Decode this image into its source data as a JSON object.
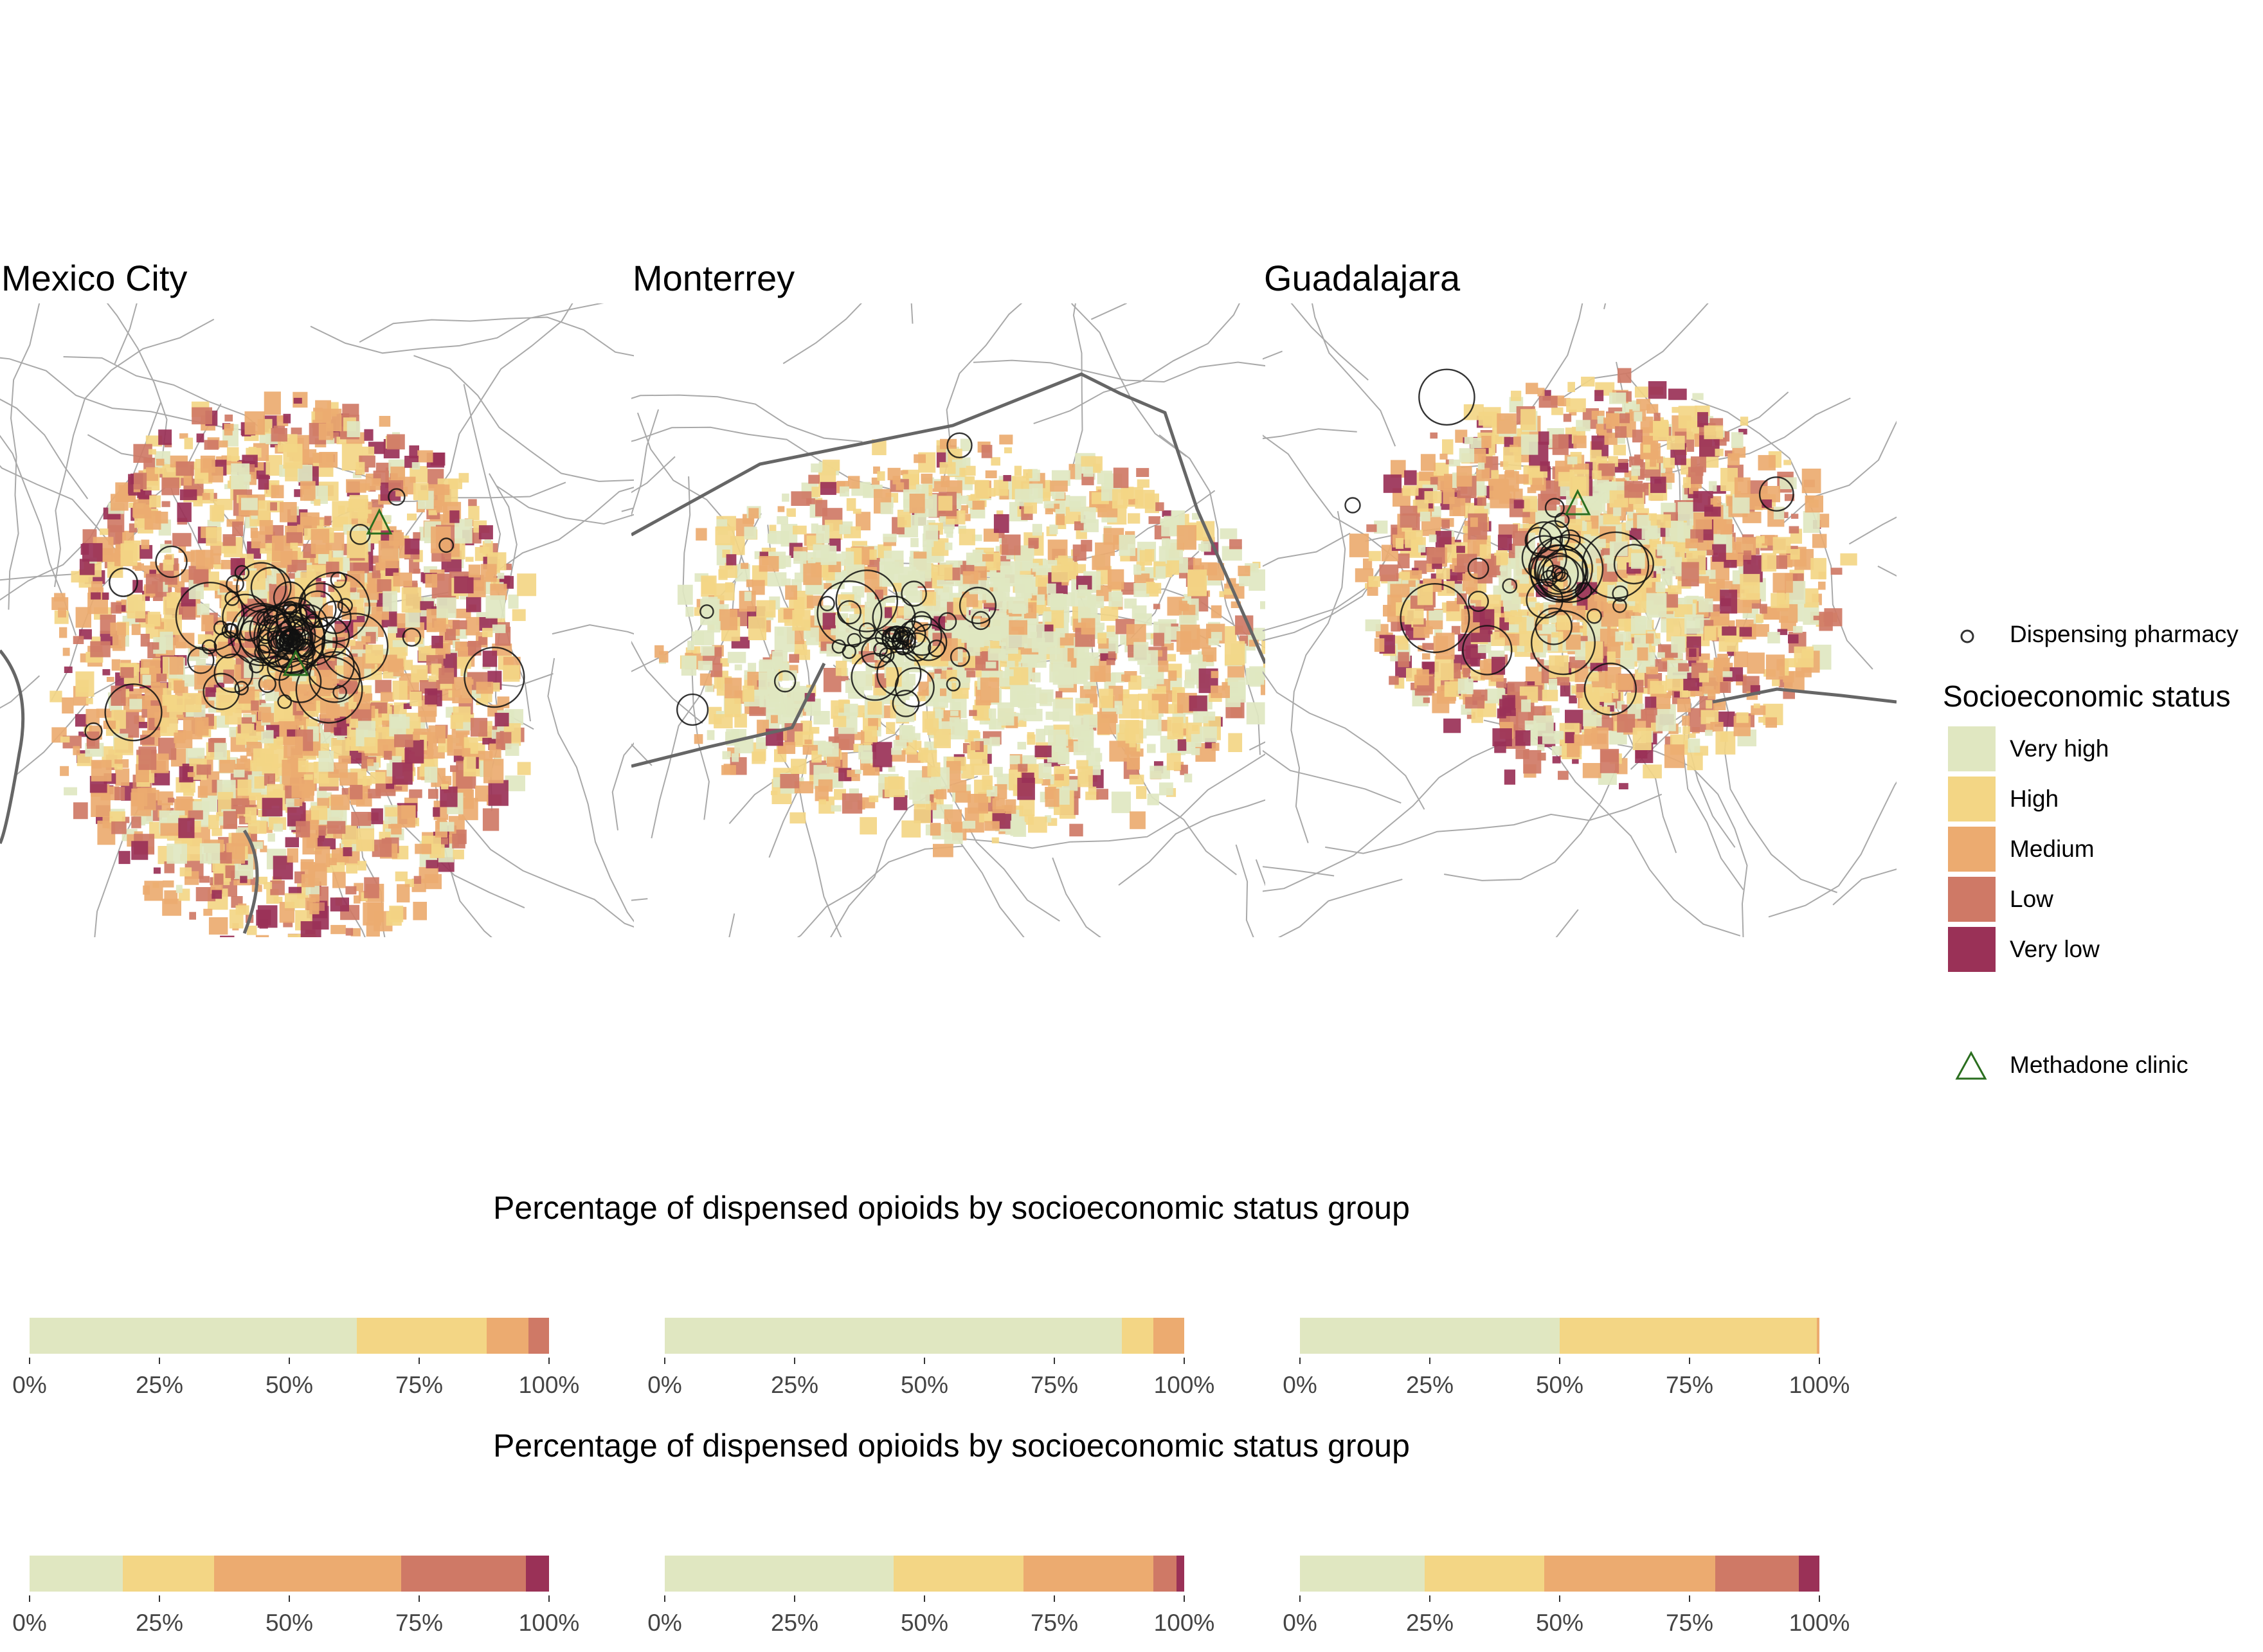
{
  "colors": {
    "very_high": "#e0e7c1",
    "high": "#f3d685",
    "medium": "#ecab70",
    "low": "#cf7966",
    "very_low": "#9a3157",
    "pharmacy_stroke": "#111111",
    "clinic_stroke": "#2a6e1f",
    "road": "#a9a9a9",
    "highway": "#666666"
  },
  "maps": [
    {
      "title": "Mexico City",
      "pharmacy_count_shown": 95
    },
    {
      "title": "Monterrey",
      "pharmacy_count_shown": 45
    },
    {
      "title": "Guadalajara",
      "pharmacy_count_shown": 38
    }
  ],
  "legend": {
    "pharmacy_label": "Dispensing pharmacy",
    "pharmacy_icon": "circle-outline-icon",
    "ses_title": "Socioeconomic status",
    "ses_items": [
      {
        "label": "Very high",
        "color": "#e0e7c1"
      },
      {
        "label": "High",
        "color": "#f3d685"
      },
      {
        "label": "Medium",
        "color": "#ecab70"
      },
      {
        "label": "Low",
        "color": "#cf7966"
      },
      {
        "label": "Very low",
        "color": "#9a3157"
      }
    ],
    "clinic_label": "Methadone clinic",
    "clinic_icon": "triangle-outline-icon"
  },
  "sections": [
    {
      "title": "Percentage of dispensed opioids by socioeconomic status group"
    },
    {
      "title": "Percentage of dispensed opioids by socioeconomic status group"
    }
  ],
  "tick_labels": [
    "0%",
    "25%",
    "50%",
    "75%",
    "100%"
  ],
  "chart_data": [
    {
      "type": "bar",
      "city_index": 0,
      "row": 0,
      "orientation": "stacked-horizontal",
      "categories": [
        "Very high",
        "High",
        "Medium",
        "Low",
        "Very low"
      ],
      "values": [
        63,
        25,
        8,
        4,
        0
      ],
      "xlim": [
        0,
        100
      ]
    },
    {
      "type": "bar",
      "city_index": 1,
      "row": 0,
      "orientation": "stacked-horizontal",
      "categories": [
        "Very high",
        "High",
        "Medium",
        "Low",
        "Very low"
      ],
      "values": [
        88,
        6,
        6,
        0,
        0
      ],
      "xlim": [
        0,
        100
      ]
    },
    {
      "type": "bar",
      "city_index": 2,
      "row": 0,
      "orientation": "stacked-horizontal",
      "categories": [
        "Very high",
        "High",
        "Medium",
        "Low",
        "Very low"
      ],
      "values": [
        50,
        49.5,
        0.5,
        0,
        0
      ],
      "xlim": [
        0,
        100
      ]
    },
    {
      "type": "bar",
      "city_index": 0,
      "row": 1,
      "orientation": "stacked-horizontal",
      "categories": [
        "Very high",
        "High",
        "Medium",
        "Low",
        "Very low"
      ],
      "values": [
        18,
        17.5,
        36,
        24,
        4.5
      ],
      "xlim": [
        0,
        100
      ]
    },
    {
      "type": "bar",
      "city_index": 1,
      "row": 1,
      "orientation": "stacked-horizontal",
      "categories": [
        "Very high",
        "High",
        "Medium",
        "Low",
        "Very low"
      ],
      "values": [
        44,
        25,
        25,
        4.5,
        1.5
      ],
      "xlim": [
        0,
        100
      ]
    },
    {
      "type": "bar",
      "city_index": 2,
      "row": 1,
      "orientation": "stacked-horizontal",
      "categories": [
        "Very high",
        "High",
        "Medium",
        "Low",
        "Very low"
      ],
      "values": [
        24,
        23,
        33,
        16,
        4
      ],
      "xlim": [
        0,
        100
      ]
    }
  ]
}
